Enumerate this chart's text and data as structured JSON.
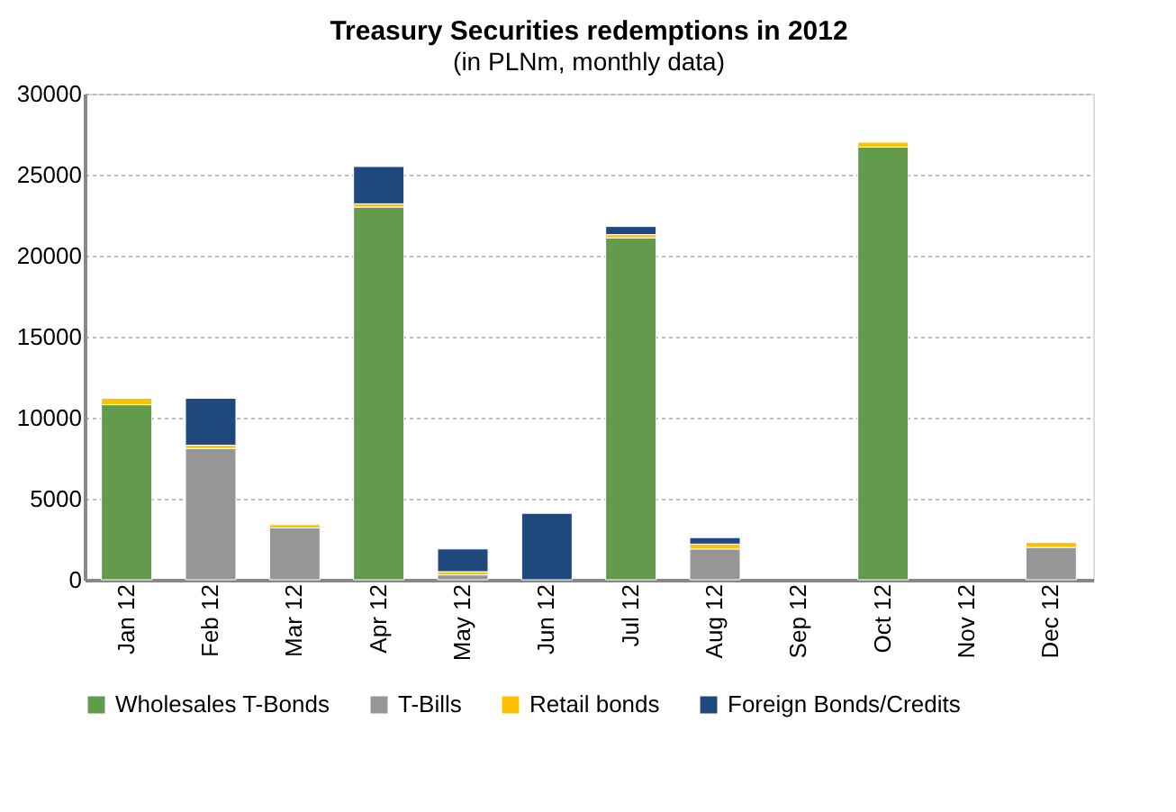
{
  "chart_data": {
    "type": "bar",
    "title": "Treasury Securities redemptions in 2012",
    "subtitle": "(in PLNm, monthly data)",
    "categories": [
      "Jan 12",
      "Feb 12",
      "Mar 12",
      "Apr 12",
      "May 12",
      "Jun 12",
      "Jul 12",
      "Aug 12",
      "Sep 12",
      "Oct 12",
      "Nov 12",
      "Dec 12"
    ],
    "stacked": true,
    "series": [
      {
        "name": "Wholesales T-Bonds",
        "color": "#629b4c",
        "values": [
          10800,
          0,
          0,
          23000,
          0,
          0,
          21100,
          0,
          0,
          26700,
          0,
          0
        ]
      },
      {
        "name": "T-Bills",
        "color": "#969696",
        "values": [
          0,
          8100,
          3200,
          0,
          300,
          0,
          0,
          1900,
          0,
          0,
          null,
          2000
        ]
      },
      {
        "name": "Retail bonds",
        "color": "#ffc000",
        "values": [
          400,
          200,
          200,
          200,
          200,
          0,
          200,
          300,
          null,
          300,
          0,
          300
        ]
      },
      {
        "name": "Foreign Bonds/Credits",
        "color": "#1f497d",
        "values": [
          0,
          2900,
          0,
          2300,
          1400,
          4100,
          500,
          400,
          0,
          0,
          0,
          0
        ]
      }
    ],
    "ylim": [
      0,
      30000
    ],
    "yticks": [
      0,
      5000,
      10000,
      15000,
      20000,
      25000,
      30000
    ],
    "grid": "y",
    "legend": "bottom"
  }
}
